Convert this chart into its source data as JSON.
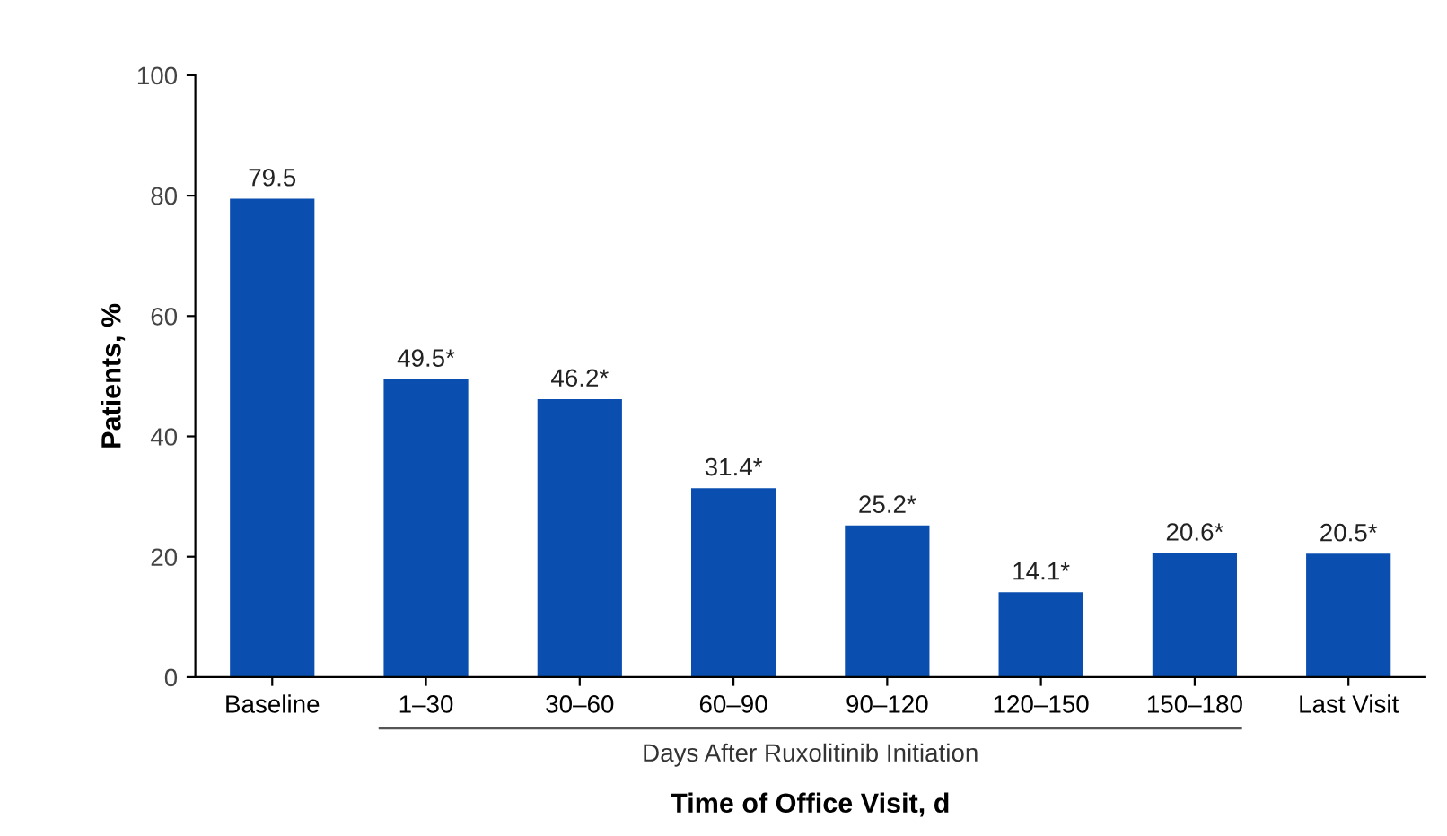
{
  "chart_data": {
    "type": "bar",
    "categories": [
      "Baseline",
      "1–30",
      "30–60",
      "60–90",
      "90–120",
      "120–150",
      "150–180",
      "Last Visit"
    ],
    "values": [
      79.5,
      49.5,
      46.2,
      31.4,
      25.2,
      14.1,
      20.6,
      20.5
    ],
    "value_labels": [
      "79.5",
      "49.5*",
      "46.2*",
      "31.4*",
      "25.2*",
      "14.1*",
      "20.6*",
      "20.5*"
    ],
    "color": "#0a4fb0",
    "ylabel": "Patients, %",
    "xlabel": "Time of Office Visit, d",
    "annotations": [
      "Days After Ruxolitinib Initiation"
    ],
    "ylim": [
      0,
      100
    ],
    "yticks": [
      0,
      20,
      40,
      60,
      80,
      100
    ],
    "grid": false,
    "legend": false
  }
}
